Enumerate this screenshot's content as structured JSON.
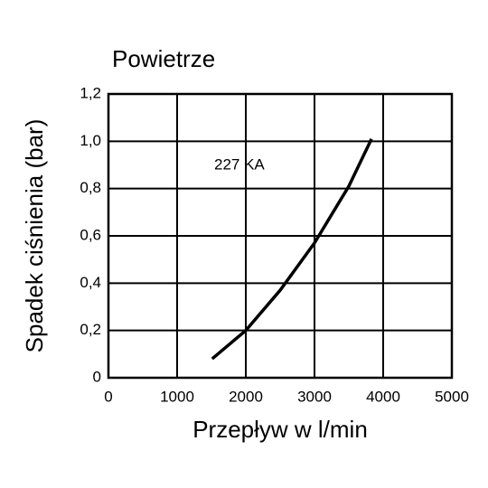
{
  "chart_data": {
    "type": "line",
    "title": "Powietrze",
    "xlabel": "Przepływ w l/min",
    "ylabel": "Spadek ciśnienia (bar)",
    "annotation": "227 KA",
    "x": [
      1510,
      2000,
      2500,
      3000,
      3500,
      3830
    ],
    "series": [
      {
        "name": "227 KA",
        "color": "#000000",
        "values": [
          0.08,
          0.2,
          0.37,
          0.57,
          0.81,
          1.01
        ]
      }
    ],
    "xlim": [
      0,
      5000
    ],
    "xticks": [
      0,
      1000,
      2000,
      3000,
      4000,
      5000
    ],
    "ylim": [
      0,
      1.2
    ],
    "yticks": [
      0,
      {
        "value": 0.2,
        "label": "0,2"
      },
      {
        "value": 0.4,
        "label": "0,4"
      },
      {
        "value": 0.6,
        "label": "0,6"
      },
      {
        "value": 0.8,
        "label": "0,8"
      },
      {
        "value": 1.0,
        "label": "1,0"
      },
      {
        "value": 1.2,
        "label": "1,2"
      }
    ],
    "grid": true
  }
}
